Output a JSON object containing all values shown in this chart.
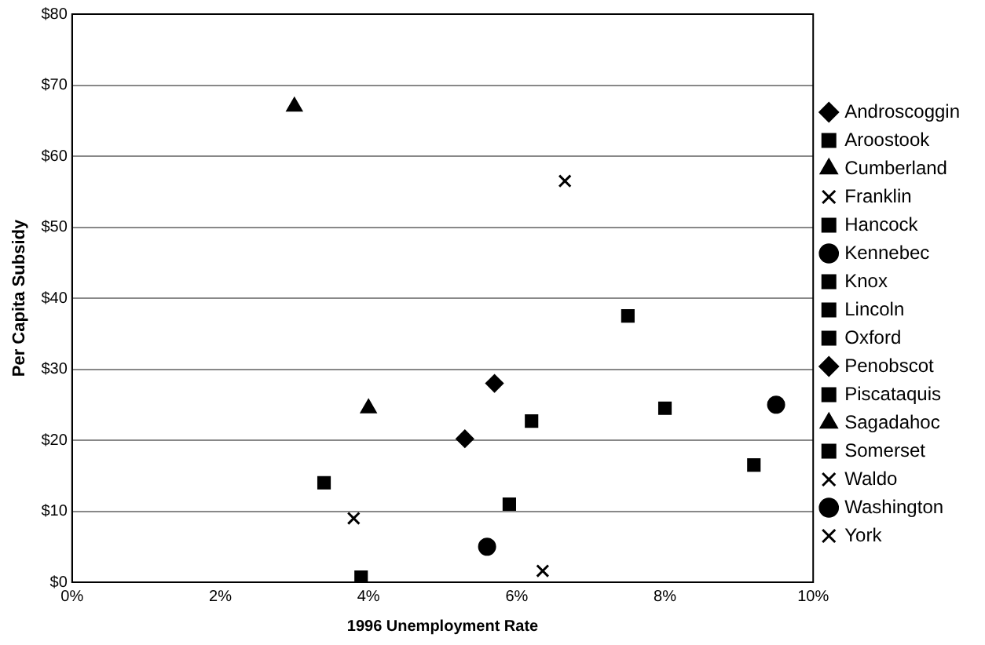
{
  "chart_data": {
    "type": "scatter",
    "xlabel": "1996 Unemployment Rate",
    "ylabel": "Per Capita Subsidy",
    "xlim": [
      0,
      10
    ],
    "xticks": [
      {
        "value": 0,
        "label": "0%"
      },
      {
        "value": 2,
        "label": "2%"
      },
      {
        "value": 4,
        "label": "4%"
      },
      {
        "value": 6,
        "label": "6%"
      },
      {
        "value": 8,
        "label": "8%"
      },
      {
        "value": 10,
        "label": "10%"
      }
    ],
    "ylim": [
      0,
      80
    ],
    "yticks": [
      {
        "value": 0,
        "label": "$0"
      },
      {
        "value": 10,
        "label": "$10"
      },
      {
        "value": 20,
        "label": "$20"
      },
      {
        "value": 30,
        "label": "$30"
      },
      {
        "value": 40,
        "label": "$40"
      },
      {
        "value": 50,
        "label": "$50"
      },
      {
        "value": 60,
        "label": "$60"
      },
      {
        "value": 70,
        "label": "$70"
      },
      {
        "value": 80,
        "label": "$80"
      }
    ],
    "grid": "y",
    "legend": "right",
    "series": [
      {
        "name": "Androscoggin",
        "color": "#000000",
        "marker": "diamond",
        "x": [
          5.7
        ],
        "values": [
          28
        ]
      },
      {
        "name": "Aroostook",
        "color": "#000000",
        "marker": "square",
        "x": [
          9.2
        ],
        "values": [
          16.5
        ]
      },
      {
        "name": "Cumberland",
        "color": "#000000",
        "marker": "triangle",
        "x": [
          3
        ],
        "values": [
          67
        ]
      },
      {
        "name": "Franklin",
        "color": "#000000",
        "marker": "cross",
        "x": [
          6.65
        ],
        "values": [
          56.5
        ]
      },
      {
        "name": "Hancock",
        "color": "#000000",
        "marker": "square",
        "x": [
          5.9
        ],
        "values": [
          11
        ]
      },
      {
        "name": "Kennebec",
        "color": "#000000",
        "marker": "circle",
        "x": [
          5.6
        ],
        "values": [
          5
        ]
      },
      {
        "name": "Knox",
        "color": "#000000",
        "marker": "square",
        "x": [
          3.4
        ],
        "values": [
          14
        ]
      },
      {
        "name": "Lincoln",
        "color": "#000000",
        "marker": "square",
        "x": [
          3.9
        ],
        "values": [
          0.7
        ]
      },
      {
        "name": "Oxford",
        "color": "#000000",
        "marker": "square",
        "x": [
          6.2
        ],
        "values": [
          22.7
        ]
      },
      {
        "name": "Penobscot",
        "color": "#000000",
        "marker": "diamond",
        "x": [
          5.3
        ],
        "values": [
          20.2
        ]
      },
      {
        "name": "Piscataquis",
        "color": "#000000",
        "marker": "square",
        "x": [
          7.5
        ],
        "values": [
          37.5
        ]
      },
      {
        "name": "Sagadahoc",
        "color": "#000000",
        "marker": "triangle",
        "x": [
          4
        ],
        "values": [
          24.5
        ]
      },
      {
        "name": "Somerset",
        "color": "#000000",
        "marker": "square",
        "x": [
          8
        ],
        "values": [
          24.5
        ]
      },
      {
        "name": "Waldo",
        "color": "#000000",
        "marker": "cross",
        "x": [
          6.35
        ],
        "values": [
          1.6
        ]
      },
      {
        "name": "Washington",
        "color": "#000000",
        "marker": "circle",
        "x": [
          9.5
        ],
        "values": [
          25
        ]
      },
      {
        "name": "York",
        "color": "#000000",
        "marker": "cross",
        "x": [
          3.8
        ],
        "values": [
          9
        ]
      }
    ]
  }
}
